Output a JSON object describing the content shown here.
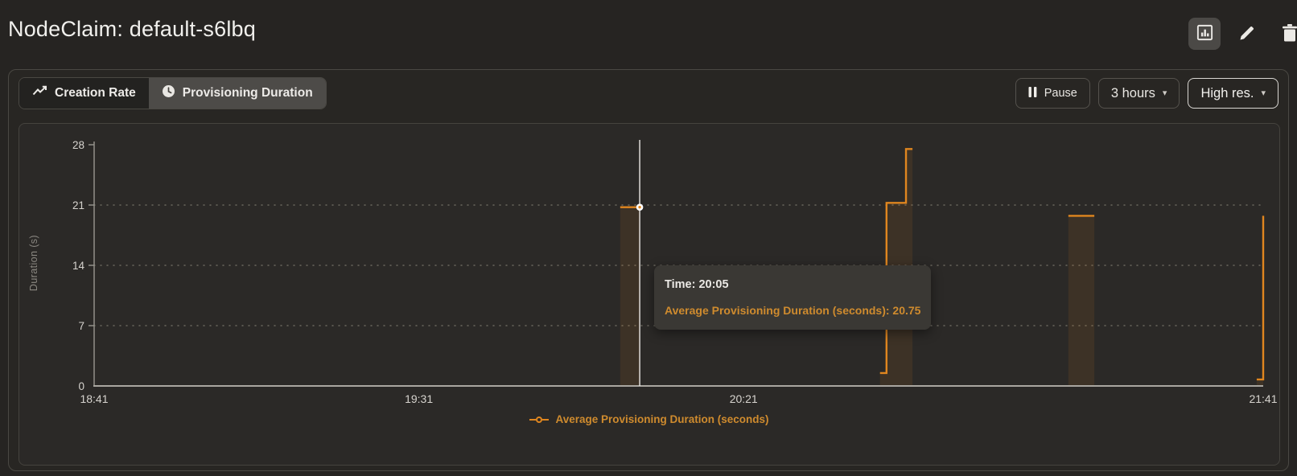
{
  "header": {
    "title": "NodeClaim: default-s6lbq",
    "actions": [
      {
        "icon": "bar-chart-icon",
        "active": true
      },
      {
        "icon": "pencil-icon",
        "active": false
      },
      {
        "icon": "trash-icon",
        "active": false
      }
    ]
  },
  "toolbar": {
    "tabs": [
      {
        "label": "Creation Rate",
        "icon": "trend-line-icon",
        "selected": false
      },
      {
        "label": "Provisioning Duration",
        "icon": "clock-icon",
        "selected": true
      }
    ],
    "pause_label": "Pause",
    "time_range": "3 hours",
    "resolution": "High res."
  },
  "chart_data": {
    "type": "step-area",
    "title": "",
    "ylabel": "Duration (s)",
    "ylim": [
      0,
      28
    ],
    "yticks": [
      0,
      7,
      14,
      21,
      28
    ],
    "x_start": "18:41",
    "x_end": "21:41",
    "xticks": [
      "18:41",
      "19:31",
      "20:21",
      "21:41"
    ],
    "grid": "horizontal-dotted",
    "legend_position": "bottom-center",
    "series": [
      {
        "name": "Average Provisioning Duration (seconds)",
        "color": "#e0861f",
        "segments": [
          [
            {
              "t": "20:02",
              "v": 20.75
            },
            {
              "t": "20:05",
              "v": 20.75
            }
          ],
          [
            {
              "t": "20:42",
              "v": 1.5
            },
            {
              "t": "20:43",
              "v": 1.5
            },
            {
              "t": "20:43",
              "v": 21.25
            },
            {
              "t": "20:46",
              "v": 21.25
            },
            {
              "t": "20:46",
              "v": 27.5
            },
            {
              "t": "20:47",
              "v": 27.5
            }
          ],
          [
            {
              "t": "21:11",
              "v": 19.75
            },
            {
              "t": "21:15",
              "v": 19.75
            }
          ],
          [
            {
              "t": "21:40",
              "v": 0.75
            },
            {
              "t": "21:41",
              "v": 0.75
            },
            {
              "t": "21:41",
              "v": 19.75
            }
          ]
        ]
      }
    ],
    "hover_point": {
      "t": "20:05",
      "v": 20.75
    }
  },
  "tooltip": {
    "time_label": "Time:",
    "time_value": "20:05",
    "series_label": "Average Provisioning Duration (seconds):",
    "series_value": "20.75"
  },
  "colors": {
    "accent_line": "#e0861f",
    "accent_text": "#cf8b2e",
    "crosshair": "#eceae6"
  }
}
